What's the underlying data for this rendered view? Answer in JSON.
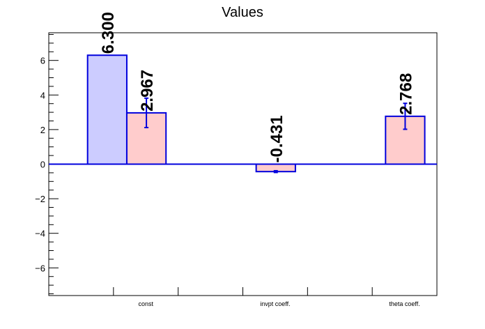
{
  "chart_data": {
    "type": "bar",
    "title": "Values",
    "categories": [
      "const",
      "invpt coeff.",
      "theta coeff."
    ],
    "xlabel": "",
    "ylabel": "",
    "ylim": [
      -7.6,
      7.6
    ],
    "y_ticks": [
      -6,
      -4,
      -2,
      0,
      2,
      4,
      6
    ],
    "y_tick_labels": [
      "−6",
      "−4",
      "−2",
      "0",
      "2",
      "4",
      "6"
    ],
    "grid": false,
    "legend": "none",
    "series": [
      {
        "values": [
          6.3,
          null,
          null
        ],
        "errors": [
          null,
          null,
          null
        ],
        "labels": [
          "6.300",
          "",
          ""
        ],
        "fill": "#ccccff",
        "stroke": "#0000dd"
      },
      {
        "values": [
          2.967,
          -0.431,
          2.768
        ],
        "errors": [
          0.85,
          0.05,
          0.75
        ],
        "labels": [
          "2.967",
          "-0.431",
          "2.768"
        ],
        "fill": "#ffcccc",
        "stroke": "#0000dd"
      }
    ]
  }
}
